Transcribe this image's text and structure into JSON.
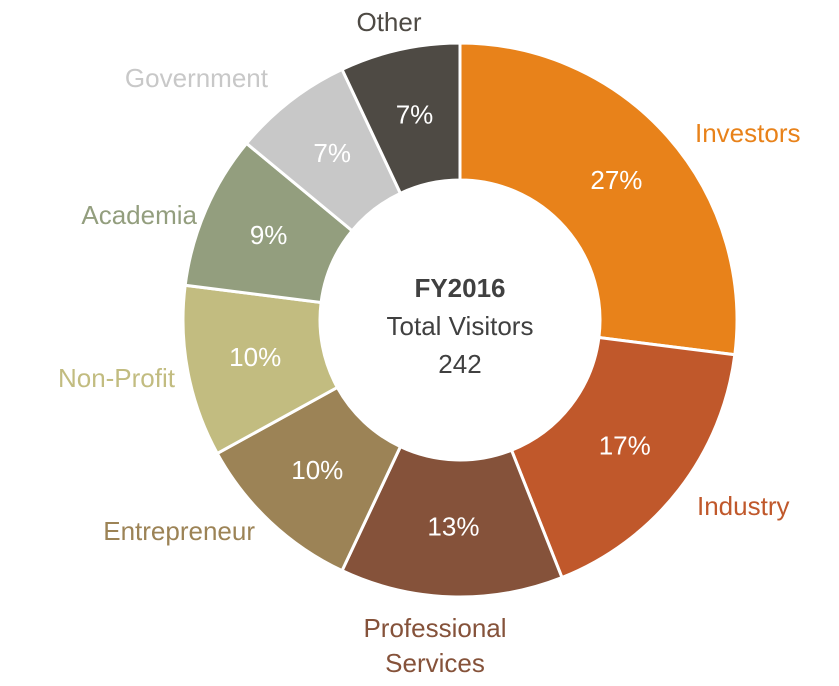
{
  "chart_data": {
    "type": "donut",
    "categories": [
      "Investors",
      "Industry",
      "Professional Services",
      "Entrepreneur",
      "Non-Profit",
      "Academia",
      "Government",
      "Other"
    ],
    "values": [
      27,
      17,
      13,
      10,
      10,
      9,
      7,
      7
    ],
    "value_labels": [
      "27%",
      "17%",
      "13%",
      "10%",
      "10%",
      "9%",
      "7%",
      "7%"
    ],
    "colors": [
      "#e8821a",
      "#c0582b",
      "#85523a",
      "#9c8356",
      "#c2bc80",
      "#939e7e",
      "#c8c8c8",
      "#4e4a44"
    ],
    "center_title": "FY2016",
    "center_subtitle": "Total Visitors",
    "center_value": 242
  }
}
